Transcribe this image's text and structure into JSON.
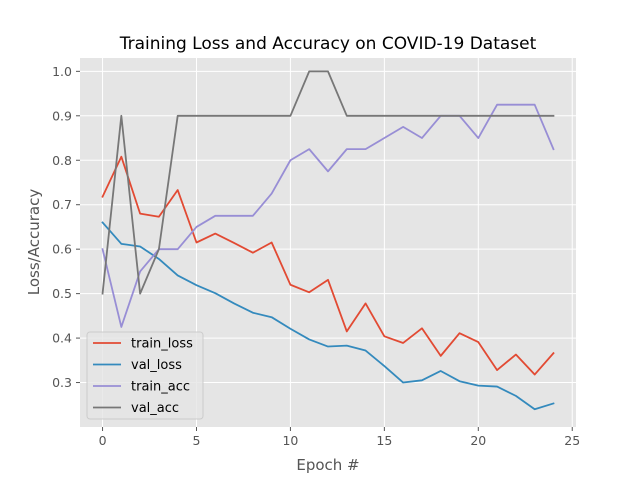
{
  "chart_data": {
    "type": "line",
    "style": "ggplot",
    "title": "Training Loss and Accuracy on COVID-19 Dataset",
    "xlabel": "Epoch #",
    "ylabel": "Loss/Accuracy",
    "xlim": [
      -1.2,
      25.2
    ],
    "ylim": [
      0.2,
      1.03
    ],
    "xticks": [
      0,
      5,
      10,
      15,
      20,
      25
    ],
    "yticks": [
      0.3,
      0.4,
      0.5,
      0.6,
      0.7,
      0.8,
      0.9,
      1.0
    ],
    "xtick_labels": [
      "0",
      "5",
      "10",
      "15",
      "20",
      "25"
    ],
    "ytick_labels": [
      "0.3",
      "0.4",
      "0.5",
      "0.6",
      "0.7",
      "0.8",
      "0.9",
      "1.0"
    ],
    "grid": true,
    "legend_position": "lower-left",
    "x": [
      0,
      1,
      2,
      3,
      4,
      5,
      6,
      7,
      8,
      9,
      10,
      11,
      12,
      13,
      14,
      15,
      16,
      17,
      18,
      19,
      20,
      21,
      22,
      23,
      24
    ],
    "series": [
      {
        "name": "train_loss",
        "color": "#E24A33",
        "values": [
          0.718,
          0.808,
          0.68,
          0.673,
          0.733,
          0.615,
          0.635,
          0.614,
          0.592,
          0.615,
          0.52,
          0.503,
          0.531,
          0.415,
          0.478,
          0.404,
          0.389,
          0.422,
          0.36,
          0.411,
          0.391,
          0.328,
          0.363,
          0.318,
          0.366
        ]
      },
      {
        "name": "val_loss",
        "color": "#348ABD",
        "values": [
          0.66,
          0.612,
          0.606,
          0.578,
          0.541,
          0.519,
          0.501,
          0.478,
          0.457,
          0.447,
          0.421,
          0.397,
          0.381,
          0.383,
          0.372,
          0.337,
          0.3,
          0.305,
          0.326,
          0.303,
          0.293,
          0.291,
          0.27,
          0.24,
          0.253
        ]
      },
      {
        "name": "train_acc",
        "color": "#988ED5",
        "values": [
          0.6,
          0.425,
          0.55,
          0.6,
          0.6,
          0.65,
          0.675,
          0.675,
          0.675,
          0.725,
          0.8,
          0.825,
          0.775,
          0.825,
          0.825,
          0.85,
          0.875,
          0.85,
          0.9,
          0.9,
          0.85,
          0.925,
          0.925,
          0.925,
          0.825
        ]
      },
      {
        "name": "val_acc",
        "color": "#777777",
        "values": [
          0.5,
          0.9,
          0.5,
          0.6,
          0.9,
          0.9,
          0.9,
          0.9,
          0.9,
          0.9,
          0.9,
          1.0,
          1.0,
          0.9,
          0.9,
          0.9,
          0.9,
          0.9,
          0.9,
          0.9,
          0.9,
          0.9,
          0.9,
          0.9,
          0.9
        ]
      }
    ]
  },
  "colors": {
    "plot_background": "#E5E5E5",
    "grid": "#FFFFFF",
    "tick": "#555555"
  }
}
